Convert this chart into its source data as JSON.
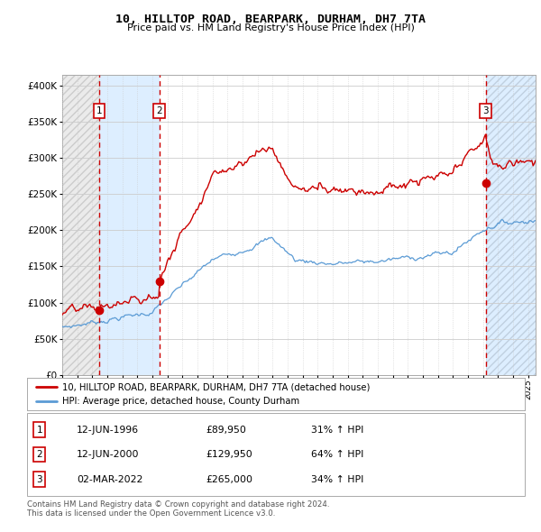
{
  "title": "10, HILLTOP ROAD, BEARPARK, DURHAM, DH7 7TA",
  "subtitle": "Price paid vs. HM Land Registry's House Price Index (HPI)",
  "ytick_values": [
    0,
    50000,
    100000,
    150000,
    200000,
    250000,
    300000,
    350000,
    400000
  ],
  "ylim": [
    0,
    415000
  ],
  "xlim_start": 1994.0,
  "xlim_end": 2025.5,
  "transactions": [
    {
      "date_num": 1996.45,
      "price": 89950,
      "label": "1"
    },
    {
      "date_num": 2000.45,
      "price": 129950,
      "label": "2"
    },
    {
      "date_num": 2022.17,
      "price": 265000,
      "label": "3"
    }
  ],
  "transaction_labels_bottom": [
    {
      "label": "1",
      "date": "12-JUN-1996",
      "price": "£89,950",
      "hpi": "31% ↑ HPI"
    },
    {
      "label": "2",
      "date": "12-JUN-2000",
      "price": "£129,950",
      "hpi": "64% ↑ HPI"
    },
    {
      "label": "3",
      "date": "02-MAR-2022",
      "price": "£265,000",
      "hpi": "34% ↑ HPI"
    }
  ],
  "legend_line1": "10, HILLTOP ROAD, BEARPARK, DURHAM, DH7 7TA (detached house)",
  "legend_line2": "HPI: Average price, detached house, County Durham",
  "footer": "Contains HM Land Registry data © Crown copyright and database right 2024.\nThis data is licensed under the Open Government Licence v3.0.",
  "property_color": "#cc0000",
  "hpi_color": "#5b9bd5",
  "dashed_line_color": "#cc0000",
  "box_color": "#cc0000",
  "grid_color": "#cccccc",
  "background_color": "#ffffff",
  "hatch_region_color": "#e0e0e0",
  "blue_shade_color": "#ddeeff"
}
